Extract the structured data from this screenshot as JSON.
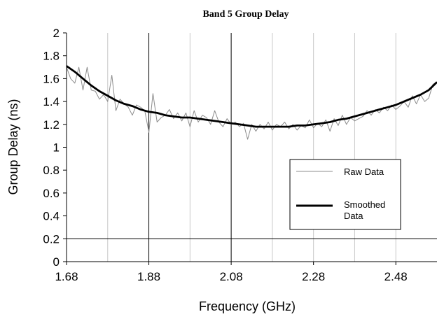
{
  "chart_data": {
    "type": "line",
    "title": "Band 5 Group Delay",
    "xlabel": "Frequency (GHz)",
    "ylabel": "Group Delay (ns)",
    "xlim": [
      1.68,
      2.58
    ],
    "ylim": [
      0,
      2
    ],
    "x_ticks": [
      "1.68",
      "1.88",
      "2.08",
      "2.28",
      "2.48"
    ],
    "y_ticks": [
      "0",
      "0.2",
      "0.4",
      "0.6",
      "0.8",
      "1",
      "1.2",
      "1.4",
      "1.6",
      "1.8",
      "2"
    ],
    "grid": "light gray vertical gridlines at each x tick and horizontal gridlines at 0.2 and 0.4",
    "legend_position": "lower-right",
    "series": [
      {
        "name": "Raw Data",
        "color": "#8c8c8c",
        "x": [
          1.68,
          1.69,
          1.7,
          1.71,
          1.72,
          1.73,
          1.74,
          1.75,
          1.76,
          1.77,
          1.78,
          1.79,
          1.8,
          1.81,
          1.82,
          1.83,
          1.84,
          1.85,
          1.86,
          1.87,
          1.88,
          1.89,
          1.9,
          1.91,
          1.92,
          1.93,
          1.94,
          1.95,
          1.96,
          1.97,
          1.98,
          1.99,
          2.0,
          2.01,
          2.02,
          2.03,
          2.04,
          2.05,
          2.06,
          2.07,
          2.08,
          2.09,
          2.1,
          2.11,
          2.12,
          2.13,
          2.14,
          2.15,
          2.16,
          2.17,
          2.18,
          2.19,
          2.2,
          2.21,
          2.22,
          2.23,
          2.24,
          2.25,
          2.26,
          2.27,
          2.28,
          2.29,
          2.3,
          2.31,
          2.32,
          2.33,
          2.34,
          2.35,
          2.36,
          2.37,
          2.38,
          2.39,
          2.4,
          2.41,
          2.42,
          2.43,
          2.44,
          2.45,
          2.46,
          2.47,
          2.48,
          2.49,
          2.5,
          2.51,
          2.52,
          2.53,
          2.54,
          2.55,
          2.56,
          2.57,
          2.58
        ],
        "y": [
          1.7,
          1.6,
          1.56,
          1.7,
          1.5,
          1.7,
          1.5,
          1.49,
          1.42,
          1.46,
          1.4,
          1.63,
          1.32,
          1.42,
          1.38,
          1.35,
          1.28,
          1.37,
          1.35,
          1.32,
          1.13,
          1.47,
          1.22,
          1.26,
          1.28,
          1.33,
          1.25,
          1.3,
          1.23,
          1.3,
          1.18,
          1.32,
          1.22,
          1.28,
          1.26,
          1.2,
          1.32,
          1.22,
          1.18,
          1.25,
          1.2,
          1.22,
          1.18,
          1.21,
          1.07,
          1.2,
          1.14,
          1.2,
          1.16,
          1.22,
          1.15,
          1.2,
          1.18,
          1.22,
          1.16,
          1.2,
          1.15,
          1.19,
          1.17,
          1.24,
          1.17,
          1.21,
          1.18,
          1.24,
          1.14,
          1.25,
          1.19,
          1.28,
          1.2,
          1.26,
          1.23,
          1.25,
          1.27,
          1.32,
          1.28,
          1.33,
          1.3,
          1.35,
          1.32,
          1.37,
          1.33,
          1.36,
          1.4,
          1.35,
          1.45,
          1.38,
          1.46,
          1.4,
          1.43,
          1.55,
          1.57
        ]
      },
      {
        "name": "Smoothed\nData",
        "color": "#000000",
        "x": [
          1.68,
          1.7,
          1.72,
          1.74,
          1.76,
          1.78,
          1.8,
          1.82,
          1.84,
          1.86,
          1.88,
          1.9,
          1.92,
          1.94,
          1.96,
          1.98,
          2.0,
          2.02,
          2.04,
          2.06,
          2.08,
          2.1,
          2.12,
          2.14,
          2.16,
          2.18,
          2.2,
          2.22,
          2.24,
          2.26,
          2.28,
          2.3,
          2.32,
          2.34,
          2.36,
          2.38,
          2.4,
          2.42,
          2.44,
          2.46,
          2.48,
          2.5,
          2.52,
          2.54,
          2.56,
          2.58
        ],
        "y": [
          1.71,
          1.66,
          1.6,
          1.54,
          1.49,
          1.45,
          1.41,
          1.38,
          1.36,
          1.33,
          1.31,
          1.3,
          1.28,
          1.27,
          1.26,
          1.26,
          1.25,
          1.24,
          1.23,
          1.22,
          1.21,
          1.2,
          1.19,
          1.18,
          1.18,
          1.18,
          1.18,
          1.18,
          1.19,
          1.19,
          1.2,
          1.21,
          1.22,
          1.24,
          1.25,
          1.27,
          1.29,
          1.31,
          1.33,
          1.35,
          1.37,
          1.4,
          1.43,
          1.46,
          1.5,
          1.57
        ]
      }
    ]
  }
}
